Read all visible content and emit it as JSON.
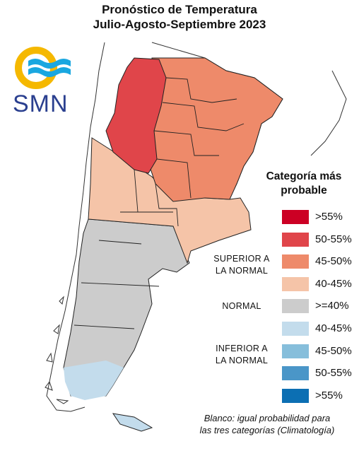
{
  "header": {
    "title_line1": "Pronóstico de Temperatura",
    "title_line2": "Julio-Agosto-Septiembre 2023"
  },
  "logo": {
    "text": "SMN",
    "colors": {
      "ring": "#f5b800",
      "waves": "#1aa7e0",
      "text": "#2a3f8f"
    }
  },
  "legend": {
    "title_line1": "Categoría más",
    "title_line2": "probable",
    "groups": {
      "superior": [
        "SUPERIOR A",
        "LA NORMAL"
      ],
      "normal": "NORMAL",
      "inferior": [
        "INFERIOR A",
        "LA NORMAL"
      ]
    },
    "items": [
      {
        "label": ">55%",
        "color": "#cc0024"
      },
      {
        "label": "50-55%",
        "color": "#e0454a"
      },
      {
        "label": "45-50%",
        "color": "#ee8a6a"
      },
      {
        "label": "40-45%",
        "color": "#f5c4a8"
      },
      {
        "label": ">=40%",
        "color": "#cccccc"
      },
      {
        "label": "40-45%",
        "color": "#c3dcec"
      },
      {
        "label": "45-50%",
        "color": "#86bedb"
      },
      {
        "label": "50-55%",
        "color": "#4a96c8"
      },
      {
        "label": ">55%",
        "color": "#0c6fb3"
      }
    ]
  },
  "note": {
    "line1": "Blanco: igual probabilidad para",
    "line2": "las tres categorías (Climatología)"
  }
}
